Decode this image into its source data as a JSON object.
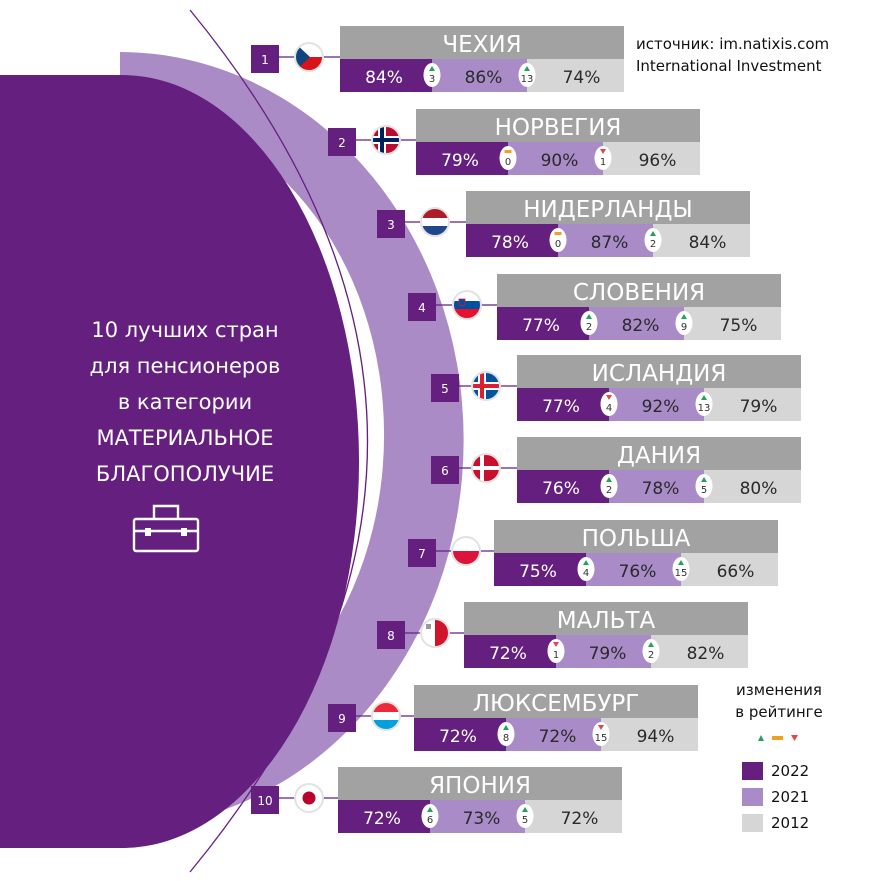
{
  "colors": {
    "y2022": "#65207f",
    "y2021": "#a98bc7",
    "y2012": "#d6d6d6",
    "header": "#a2a2a2",
    "up": "#22a35a",
    "down": "#e0484a",
    "same": "#f0a020"
  },
  "chart_data": {
    "type": "bar",
    "title": "10 лучших стран для пенсионеров в категории МАТЕРИАЛЬНОЕ БЛАГОПОЛУЧИЕ",
    "unit": "%",
    "series_years": [
      "2022",
      "2021",
      "2012"
    ],
    "countries": [
      {
        "rank": "1",
        "name": "ЧЕХИЯ",
        "flag": "czech-flag",
        "v2022": 84,
        "ch1": {
          "dir": "up",
          "val": 3
        },
        "v2021": 86,
        "ch2": {
          "dir": "up",
          "val": 13
        },
        "v2012": 74
      },
      {
        "rank": "2",
        "name": "НОРВЕГИЯ",
        "flag": "norway-flag",
        "v2022": 79,
        "ch1": {
          "dir": "same",
          "val": 0
        },
        "v2021": 90,
        "ch2": {
          "dir": "down",
          "val": 1
        },
        "v2012": 96
      },
      {
        "rank": "3",
        "name": "НИДЕРЛАНДЫ",
        "flag": "netherlands-flag",
        "v2022": 78,
        "ch1": {
          "dir": "same",
          "val": 0
        },
        "v2021": 87,
        "ch2": {
          "dir": "up",
          "val": 2
        },
        "v2012": 84
      },
      {
        "rank": "4",
        "name": "СЛОВЕНИЯ",
        "flag": "slovenia-flag",
        "v2022": 77,
        "ch1": {
          "dir": "up",
          "val": 2
        },
        "v2021": 82,
        "ch2": {
          "dir": "up",
          "val": 9
        },
        "v2012": 75
      },
      {
        "rank": "5",
        "name": "ИСЛАНДИЯ",
        "flag": "iceland-flag",
        "v2022": 77,
        "ch1": {
          "dir": "down",
          "val": 4
        },
        "v2021": 92,
        "ch2": {
          "dir": "up",
          "val": 13
        },
        "v2012": 79
      },
      {
        "rank": "6",
        "name": "ДАНИЯ",
        "flag": "denmark-flag",
        "v2022": 76,
        "ch1": {
          "dir": "up",
          "val": 2
        },
        "v2021": 78,
        "ch2": {
          "dir": "up",
          "val": 5
        },
        "v2012": 80
      },
      {
        "rank": "7",
        "name": "ПОЛЬША",
        "flag": "poland-flag",
        "v2022": 75,
        "ch1": {
          "dir": "up",
          "val": 4
        },
        "v2021": 76,
        "ch2": {
          "dir": "up",
          "val": 15
        },
        "v2012": 66
      },
      {
        "rank": "8",
        "name": "МАЛЬТА",
        "flag": "malta-flag",
        "v2022": 72,
        "ch1": {
          "dir": "down",
          "val": 1
        },
        "v2021": 79,
        "ch2": {
          "dir": "up",
          "val": 2
        },
        "v2012": 82
      },
      {
        "rank": "9",
        "name": "ЛЮКСЕМБУРГ",
        "flag": "luxembourg-flag",
        "v2022": 72,
        "ch1": {
          "dir": "up",
          "val": 8
        },
        "v2021": 72,
        "ch2": {
          "dir": "down",
          "val": 15
        },
        "v2012": 94
      },
      {
        "rank": "10",
        "name": "ЯПОНИЯ",
        "flag": "japan-flag",
        "v2022": 72,
        "ch1": {
          "dir": "up",
          "val": 6
        },
        "v2021": 73,
        "ch2": {
          "dir": "up",
          "val": 5
        },
        "v2012": 72
      }
    ]
  },
  "title_lines": [
    "10 лучших стран",
    "для пенсионеров",
    "в категории",
    "МАТЕРИАЛЬНОЕ",
    "БЛАГОПОЛУЧИЕ"
  ],
  "source": {
    "line1": "источник: im.natixis.com",
    "line2": "International Investment"
  },
  "legend": {
    "changes_line1": "изменения",
    "changes_line2": "в рейтинге",
    "years": [
      "2022",
      "2021",
      "2012"
    ]
  },
  "icons": {
    "title": "briefcase-icon"
  }
}
